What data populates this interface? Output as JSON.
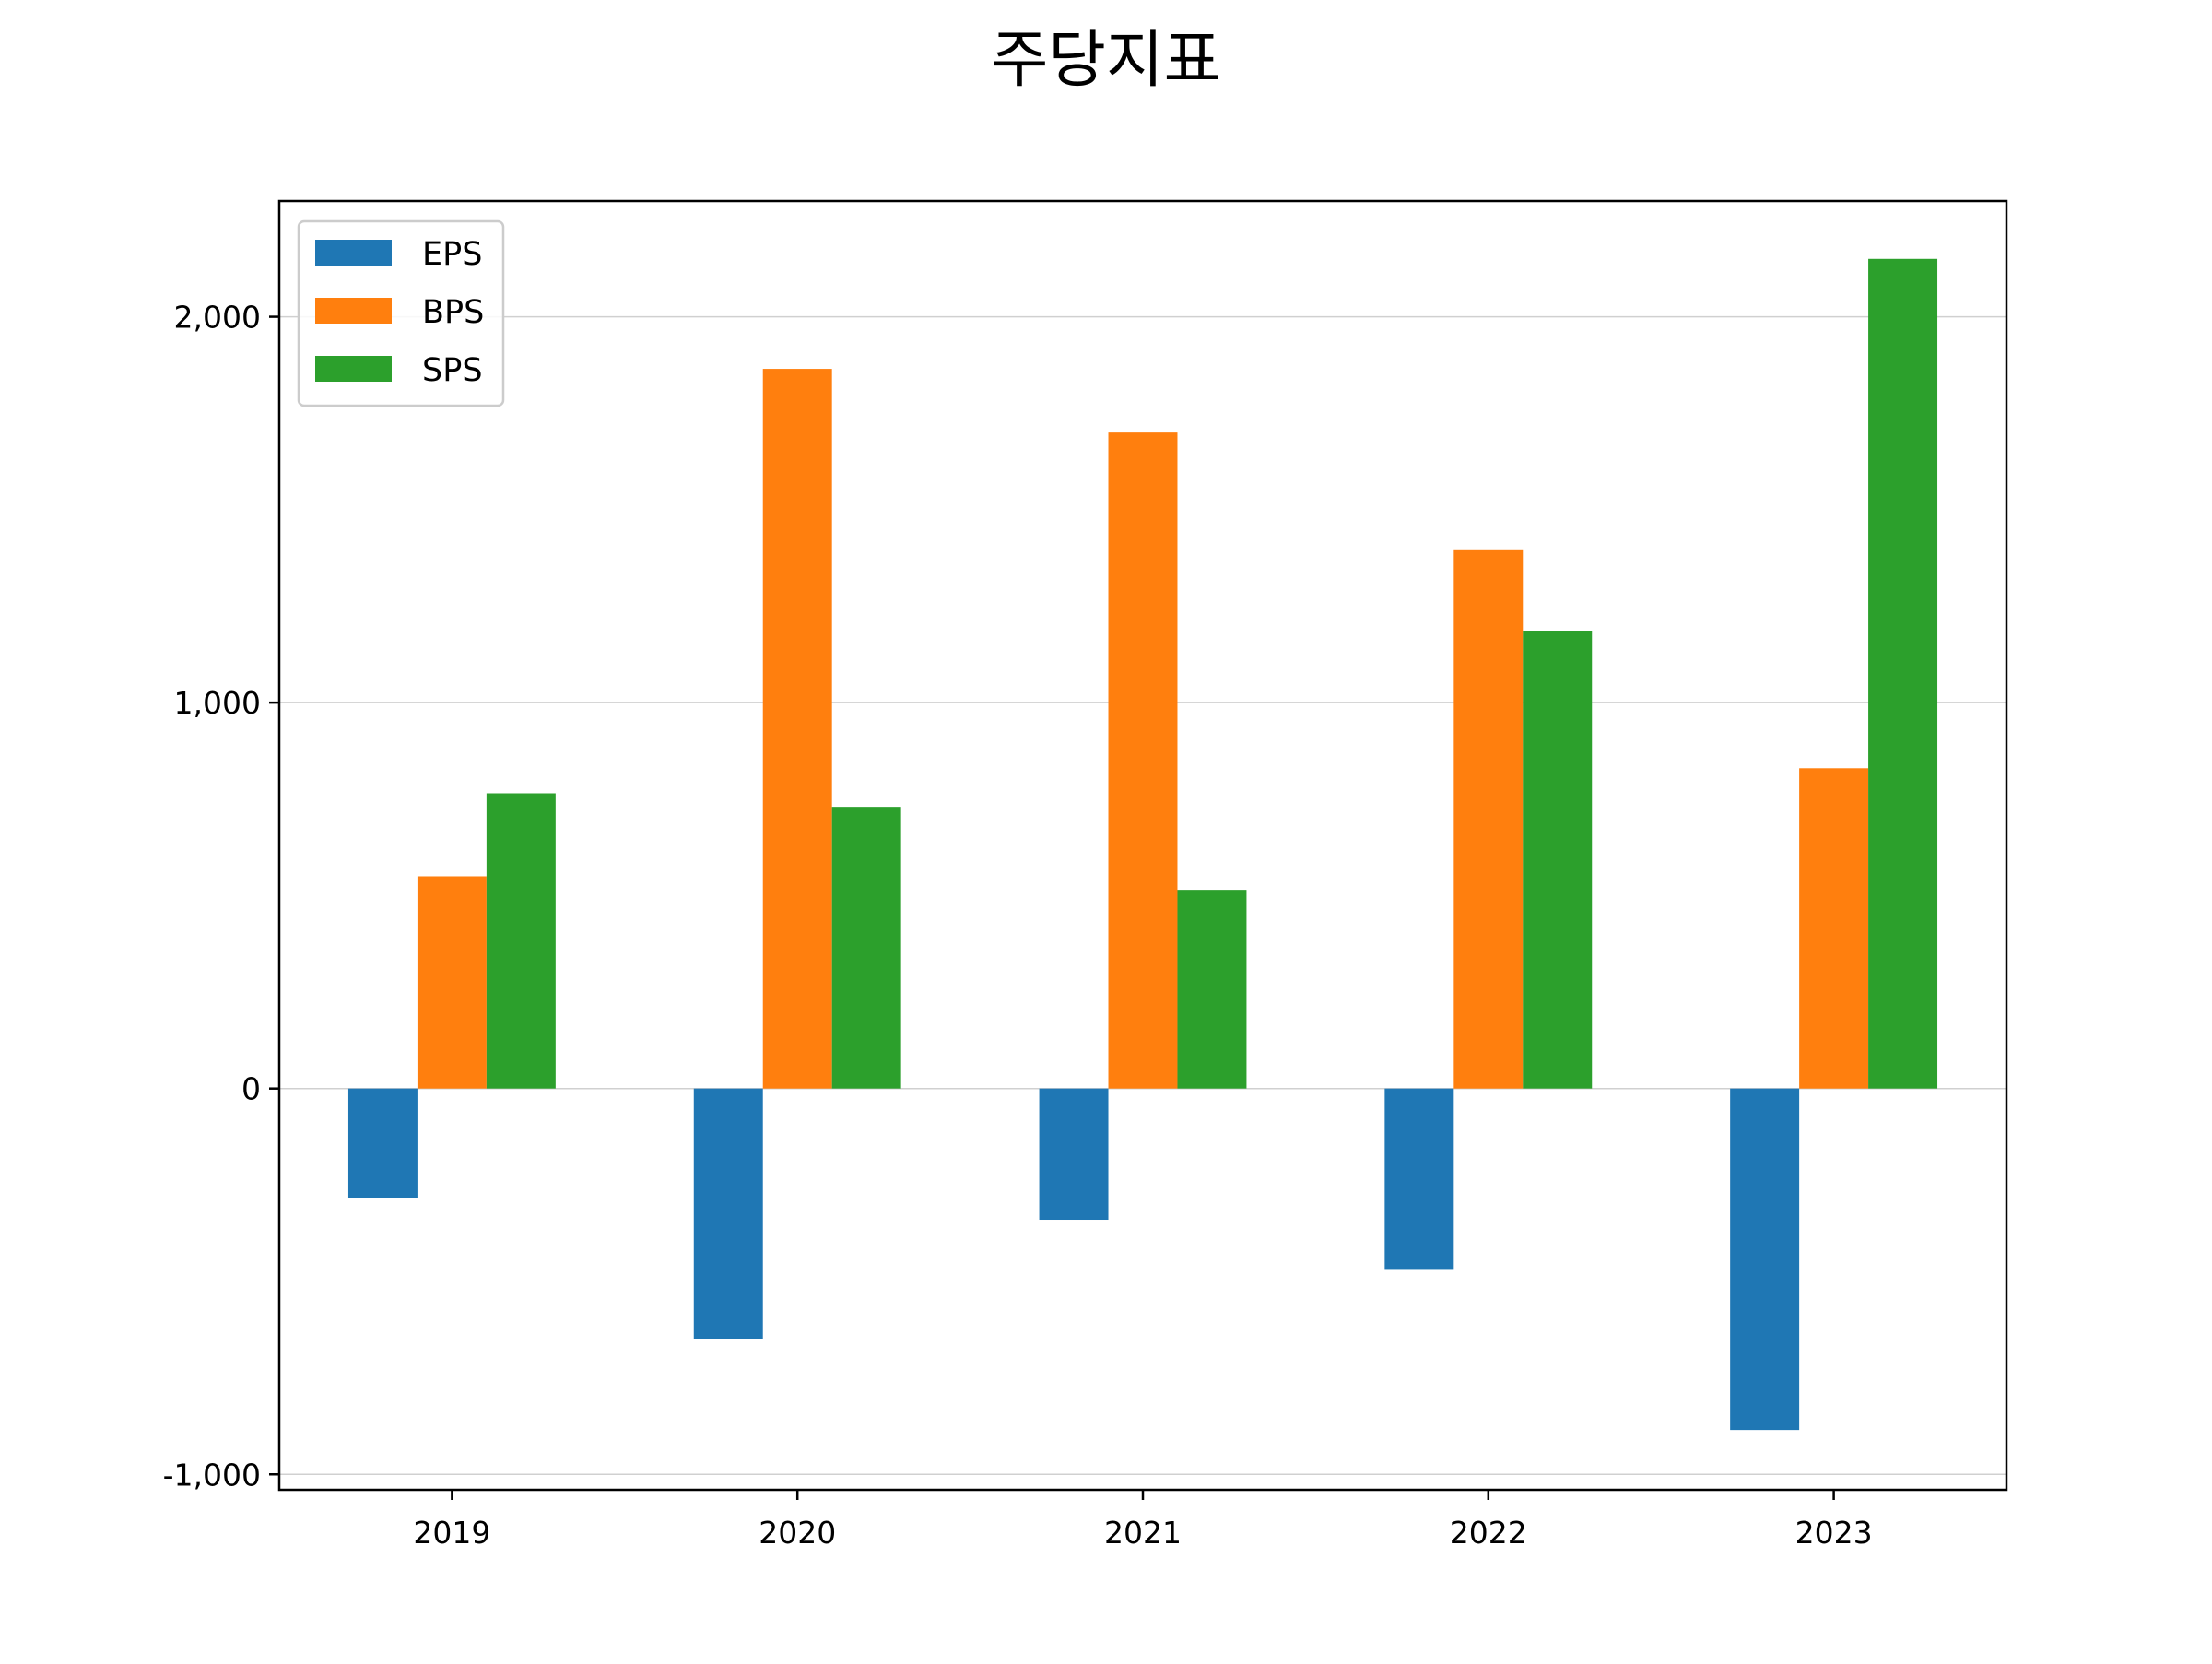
{
  "chart_data": {
    "type": "bar",
    "title": "주당지표",
    "xlabel": "",
    "ylabel": "",
    "categories": [
      "2019",
      "2020",
      "2021",
      "2022",
      "2023"
    ],
    "series": [
      {
        "name": "EPS",
        "color": "#1f77b4",
        "values": [
          -285,
          -650,
          -340,
          -470,
          -885
        ]
      },
      {
        "name": "BPS",
        "color": "#ff7f0e",
        "values": [
          550,
          1865,
          1700,
          1395,
          830
        ]
      },
      {
        "name": "SPS",
        "color": "#2ca02c",
        "values": [
          765,
          730,
          515,
          1185,
          2150
        ]
      }
    ],
    "ylim": [
      -1040,
      2300
    ],
    "yticks": [
      -1000,
      0,
      1000,
      2000
    ],
    "ytick_labels": [
      "-1,000",
      "0",
      "1,000",
      "2,000"
    ],
    "grid": "horizontal",
    "legend_position": "top-left"
  }
}
